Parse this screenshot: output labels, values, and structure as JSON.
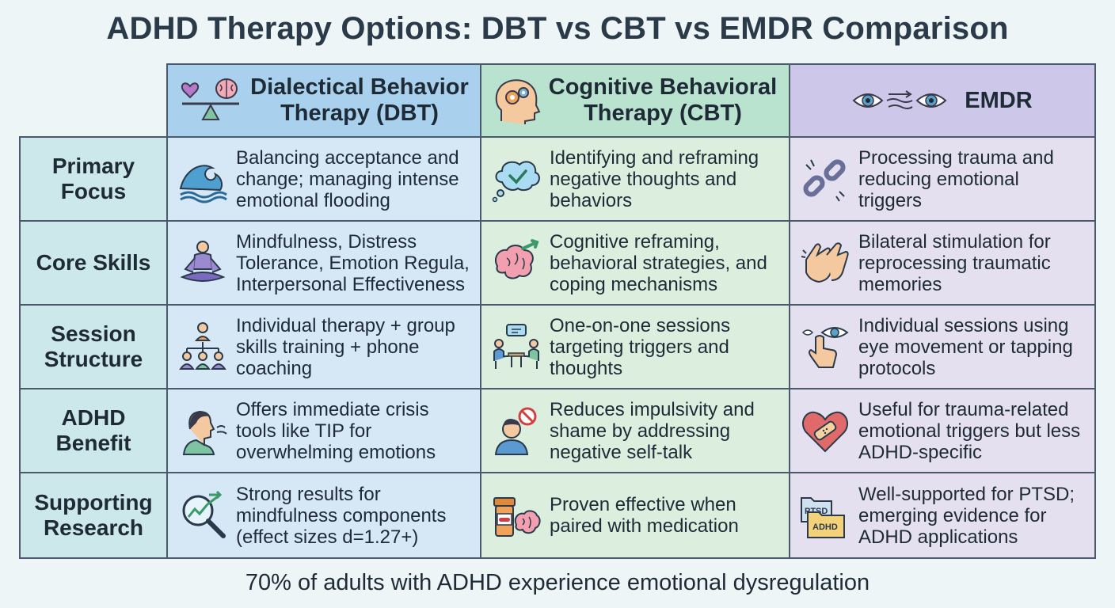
{
  "title": "ADHD Therapy Options: DBT vs CBT vs EMDR Comparison",
  "columns": [
    {
      "label_line1": "Dialectical Behavior",
      "label_line2": "Therapy (DBT)",
      "icon": "heart-brain-balance-icon"
    },
    {
      "label_line1": "Cognitive Behavioral",
      "label_line2": "Therapy (CBT)",
      "icon": "head-gears-icon"
    },
    {
      "label_line1": "EMDR",
      "label_line2": "",
      "icon": "eyes-movement-icon"
    }
  ],
  "rows": [
    {
      "label_line1": "Primary",
      "label_line2": "Focus",
      "cells": [
        {
          "text": "Balancing acceptance and change; managing intense emotional flooding",
          "icon": "wave-icon"
        },
        {
          "text": "Identifying and reframing negative thoughts and behaviors",
          "icon": "thought-bubble-check-icon"
        },
        {
          "text": "Processing trauma and reducing emotional triggers",
          "icon": "broken-chain-icon"
        }
      ]
    },
    {
      "label_line1": "Core Skills",
      "label_line2": "",
      "cells": [
        {
          "text": "Mindfulness, Distress Tolerance, Emotion Regula, Interpersonal Effectiveness",
          "icon": "meditation-icon"
        },
        {
          "text": "Cognitive reframing, behavioral strategies, and coping mechanisms",
          "icon": "brain-arrow-icon"
        },
        {
          "text": "Bilateral stimulation for reprocessing traumatic memories",
          "icon": "tapping-hands-icon"
        }
      ]
    },
    {
      "label_line1": "Session",
      "label_line2": "Structure",
      "cells": [
        {
          "text": "Individual therapy + group skills training + phone coaching",
          "icon": "group-hierarchy-icon"
        },
        {
          "text": "One-on-one sessions targeting triggers and thoughts",
          "icon": "two-people-talking-icon"
        },
        {
          "text": "Individual sessions using eye movement or tapping protocols",
          "icon": "eye-finger-icon"
        }
      ]
    },
    {
      "label_line1": "ADHD",
      "label_line2": "Benefit",
      "cells": [
        {
          "text": "Offers immediate crisis tools like TIP for overwhelming emotions",
          "icon": "person-breathing-icon"
        },
        {
          "text": "Reduces impulsivity and shame by addressing negative self-talk",
          "icon": "person-no-icon"
        },
        {
          "text": "Useful for trauma-related emotional triggers but less ADHD-specific",
          "icon": "heart-bandage-icon"
        }
      ]
    },
    {
      "label_line1": "Supporting",
      "label_line2": "Research",
      "cells": [
        {
          "text": "Strong results for mindfulness components (effect sizes d=1.27+)",
          "icon": "magnifier-chart-icon"
        },
        {
          "text": "Proven effective when paired with medication",
          "icon": "pill-bottle-brain-icon"
        },
        {
          "text": "Well-supported for PTSD; emerging evidence for ADHD applications",
          "icon": "folders-icon",
          "icon_text1": "PTSD",
          "icon_text2": "ADHD"
        }
      ]
    }
  ],
  "footer": "70% of adults with ADHD experience emotional dysregulation",
  "colors": {
    "dbt": "#d6e7f6",
    "cbt": "#dcefdf",
    "emdr": "#e4e0f0",
    "row_header": "#cce8ea",
    "border": "#4a5a6a"
  }
}
